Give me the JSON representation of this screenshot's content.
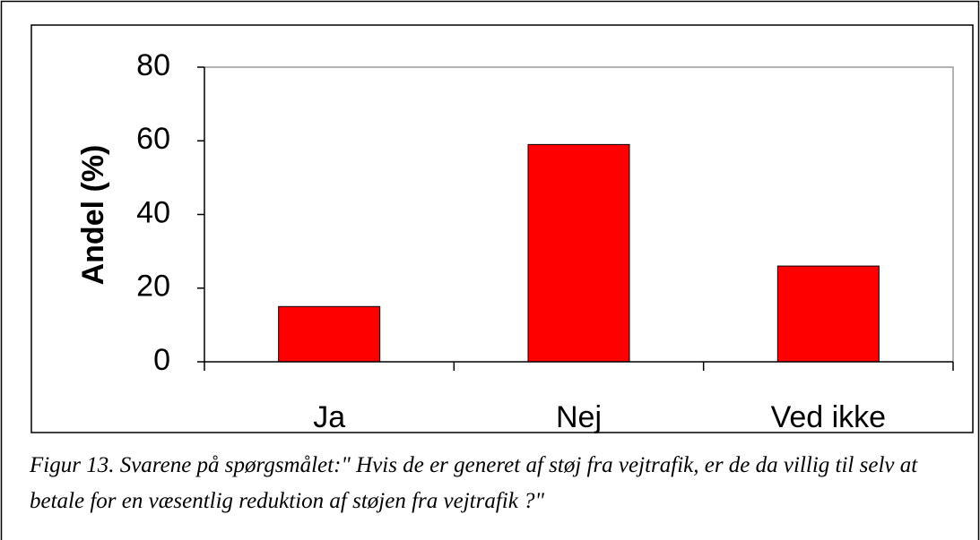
{
  "chart_data": {
    "type": "bar",
    "categories": [
      "Ja",
      "Nej",
      "Ved ikke"
    ],
    "values": [
      15,
      59,
      26
    ],
    "color": "#ff0000",
    "ylabel": "Andel (%)",
    "ylim": [
      0,
      80
    ],
    "yticks": [
      0,
      20,
      40,
      60,
      80
    ],
    "grid": false
  },
  "caption": "Figur 13. Svarene på spørgsmålet:\" Hvis de er generet af støj fra vejtrafik, er de da villig til selv at betale for en væsentlig reduktion af støjen fra vejtrafik ?\""
}
